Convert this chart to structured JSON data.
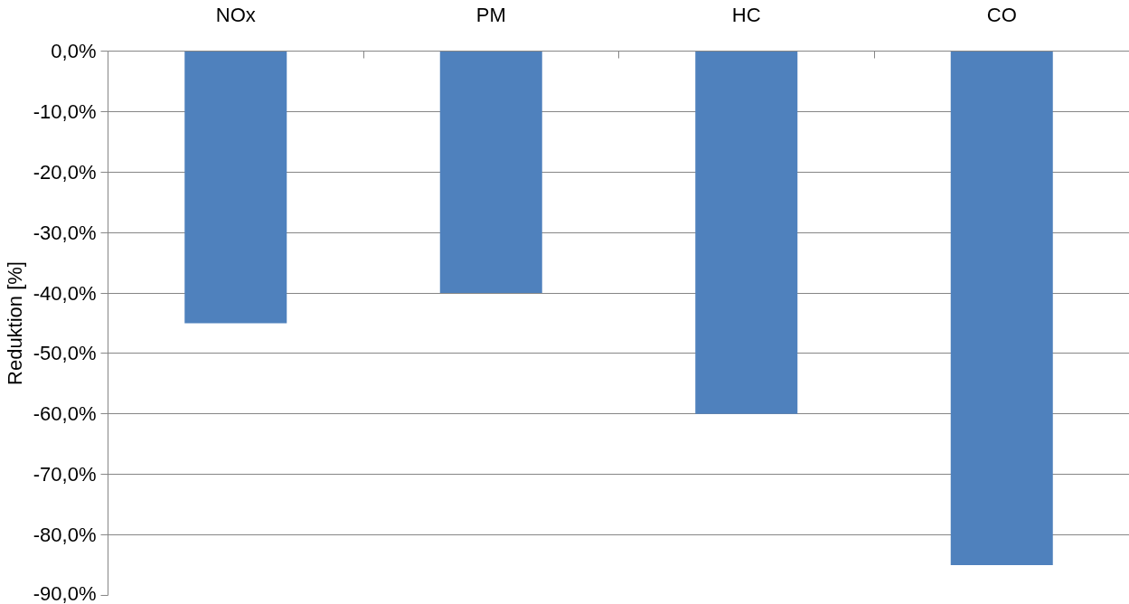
{
  "chart_data": {
    "type": "bar",
    "ylabel": "Reduktion [%]",
    "categories": [
      "NOx",
      "PM",
      "HC",
      "CO"
    ],
    "series": [
      {
        "color": "#4f81bd",
        "values": [
          -45,
          -40,
          -60,
          -85
        ]
      }
    ],
    "ylim": [
      -90,
      0
    ],
    "yticks": [
      {
        "value": 0,
        "label": "0,0%"
      },
      {
        "value": -10,
        "label": "-10,0%"
      },
      {
        "value": -20,
        "label": "-20,0%"
      },
      {
        "value": -30,
        "label": "-30,0%"
      },
      {
        "value": -40,
        "label": "-40,0%"
      },
      {
        "value": -50,
        "label": "-50,0%"
      },
      {
        "value": -60,
        "label": "-60,0%"
      },
      {
        "value": -70,
        "label": "-70,0%"
      },
      {
        "value": -80,
        "label": "-80,0%"
      },
      {
        "value": -90,
        "label": "-90,0%"
      }
    ],
    "grid": "y"
  }
}
